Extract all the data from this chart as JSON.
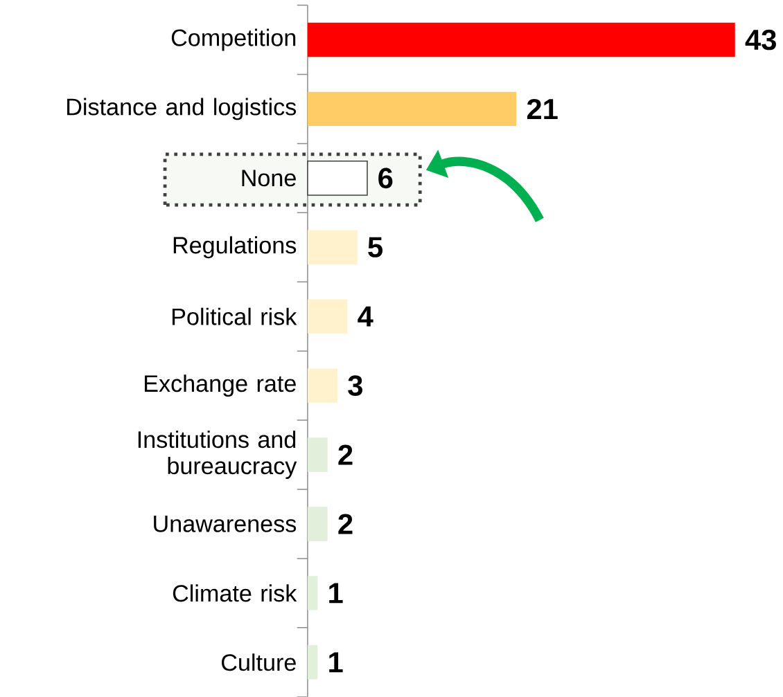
{
  "chart_data": {
    "type": "bar",
    "orientation": "horizontal",
    "categories": [
      "Competition",
      "Distance and logistics",
      "None",
      "Regulations",
      "Political risk",
      "Exchange rate",
      "Institutions and bureaucracy",
      "Unawareness",
      "Climate risk",
      "Culture"
    ],
    "values": [
      43,
      21,
      6,
      5,
      4,
      3,
      2,
      2,
      1,
      1
    ],
    "colors": [
      "#ff0000",
      "#ffcc66",
      "#ffffff",
      "#fff2cc",
      "#fff2cc",
      "#fff2cc",
      "#e2efda",
      "#e2efda",
      "#e2efda",
      "#e2efda"
    ],
    "data_labels": true
  }
}
